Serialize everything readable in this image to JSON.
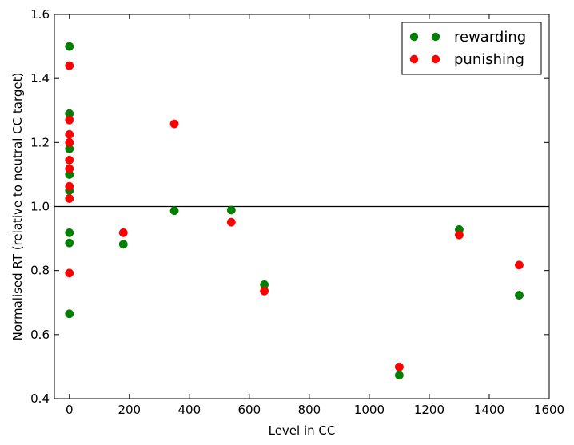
{
  "chart_data": {
    "type": "scatter",
    "title": "",
    "xlabel": "Level in CC",
    "ylabel": "Normalised RT (relative to neutral CC target)",
    "xlim": [
      -50,
      1600
    ],
    "ylim": [
      0.4,
      1.6
    ],
    "xticks": [
      0,
      200,
      400,
      600,
      800,
      1000,
      1200,
      1400,
      1600
    ],
    "yticks": [
      0.4,
      0.6,
      0.8,
      1.0,
      1.2,
      1.4,
      1.6
    ],
    "xtick_labels": [
      "0",
      "200",
      "400",
      "600",
      "800",
      "1000",
      "1200",
      "1400",
      "1600"
    ],
    "ytick_labels": [
      "0.4",
      "0.6",
      "0.8",
      "1.0",
      "1.2",
      "1.4",
      "1.6"
    ],
    "reference_line_y": 1.0,
    "grid": false,
    "legend_position": "top-right",
    "series": [
      {
        "name": "rewarding",
        "color": "#008000",
        "points": [
          [
            0,
            1.5
          ],
          [
            0,
            1.29
          ],
          [
            0,
            1.18
          ],
          [
            0,
            1.1
          ],
          [
            0,
            1.05
          ],
          [
            0,
            0.918
          ],
          [
            0,
            0.886
          ],
          [
            0,
            0.665
          ],
          [
            180,
            0.882
          ],
          [
            350,
            0.987
          ],
          [
            540,
            0.989
          ],
          [
            650,
            0.756
          ],
          [
            1100,
            0.473
          ],
          [
            1300,
            0.928
          ],
          [
            1500,
            0.723
          ]
        ]
      },
      {
        "name": "punishing",
        "color": "#ff0000",
        "points": [
          [
            0,
            1.44
          ],
          [
            0,
            1.27
          ],
          [
            0,
            1.225
          ],
          [
            0,
            1.2
          ],
          [
            0,
            1.145
          ],
          [
            0,
            1.118
          ],
          [
            0,
            1.063
          ],
          [
            0,
            1.025
          ],
          [
            0,
            0.792
          ],
          [
            180,
            0.918
          ],
          [
            350,
            1.258
          ],
          [
            540,
            0.951
          ],
          [
            650,
            0.736
          ],
          [
            1100,
            0.499
          ],
          [
            1300,
            0.911
          ],
          [
            1500,
            0.817
          ]
        ]
      }
    ]
  }
}
